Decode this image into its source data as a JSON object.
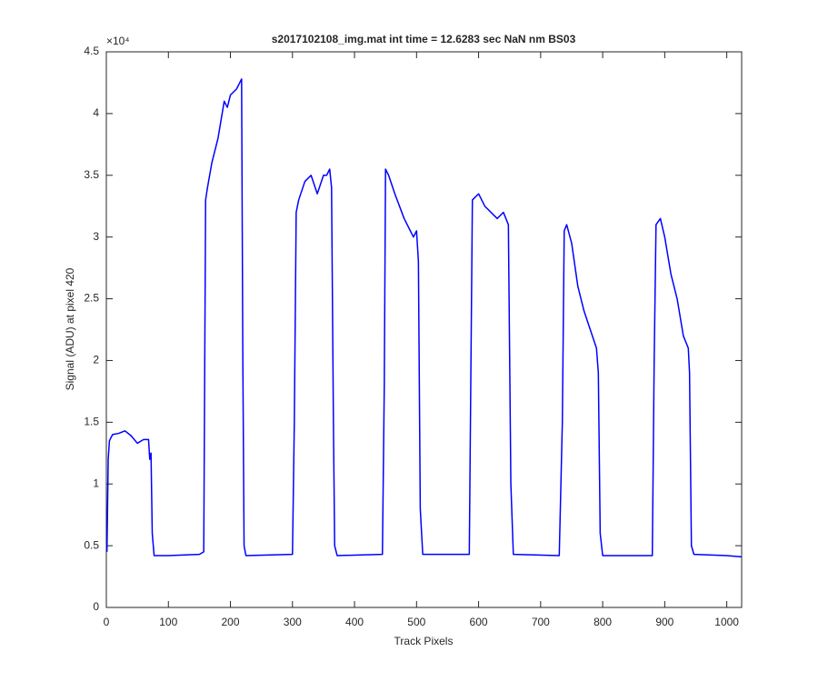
{
  "chart_data": {
    "type": "line",
    "title": "s2017102108_img.mat int time = 12.6283 sec  NaN nm BS03",
    "x_label": "Track Pixels",
    "y_label": "Signal (ADU) at pixel 420",
    "y_exponent_label": "×10⁴",
    "x": [
      1,
      3,
      5,
      10,
      20,
      30,
      40,
      50,
      60,
      68,
      70,
      72,
      74,
      77,
      100,
      150,
      157,
      160,
      163,
      170,
      180,
      190,
      195,
      200,
      210,
      215,
      218,
      220,
      222,
      225,
      300,
      303,
      306,
      310,
      320,
      330,
      340,
      350,
      355,
      360,
      363,
      366,
      368,
      372,
      445,
      448,
      450,
      455,
      465,
      480,
      490,
      495,
      500,
      503,
      506,
      510,
      585,
      590,
      600,
      610,
      630,
      640,
      648,
      652,
      656,
      730,
      735,
      738,
      742,
      750,
      760,
      770,
      780,
      790,
      793,
      796,
      800,
      880,
      883,
      886,
      893,
      900,
      910,
      920,
      930,
      938,
      940,
      943,
      947,
      1000,
      1024
    ],
    "series": [
      {
        "name": "signal",
        "color": "#0000ff",
        "values": [
          0.45,
          1.2,
          1.35,
          1.4,
          1.41,
          1.43,
          1.39,
          1.33,
          1.36,
          1.36,
          1.2,
          1.25,
          0.6,
          0.42,
          0.42,
          0.43,
          0.45,
          3.3,
          3.4,
          3.6,
          3.8,
          4.1,
          4.05,
          4.15,
          4.2,
          4.25,
          4.28,
          2.0,
          0.5,
          0.42,
          0.43,
          1.5,
          3.2,
          3.3,
          3.45,
          3.5,
          3.35,
          3.5,
          3.5,
          3.55,
          3.4,
          1.5,
          0.5,
          0.42,
          0.43,
          1.8,
          3.55,
          3.5,
          3.35,
          3.15,
          3.05,
          3.0,
          3.05,
          2.8,
          0.8,
          0.43,
          0.43,
          3.3,
          3.35,
          3.25,
          3.15,
          3.2,
          3.1,
          1.0,
          0.43,
          0.42,
          1.5,
          3.05,
          3.1,
          2.95,
          2.6,
          2.4,
          2.25,
          2.1,
          1.9,
          0.6,
          0.42,
          0.42,
          2.0,
          3.1,
          3.15,
          3.0,
          2.7,
          2.5,
          2.2,
          2.1,
          1.9,
          0.5,
          0.43,
          0.42,
          0.41
        ]
      }
    ],
    "xlim": [
      0,
      1024
    ],
    "ylim": [
      0,
      4.5
    ],
    "xticks": [
      0,
      100,
      200,
      300,
      400,
      500,
      600,
      700,
      800,
      900,
      1000
    ],
    "yticks": [
      0,
      0.5,
      1,
      1.5,
      2,
      2.5,
      3,
      3.5,
      4,
      4.5
    ]
  }
}
